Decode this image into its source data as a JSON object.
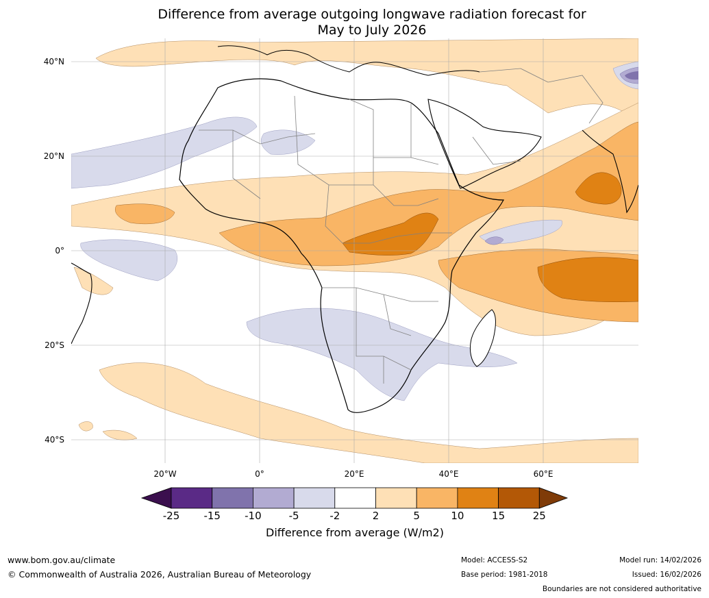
{
  "title": {
    "line1": "Difference from average outgoing longwave radiation forecast for",
    "line2": "May to July 2026"
  },
  "axes": {
    "lat_labels": [
      "40°N",
      "20°N",
      "0°",
      "20°S",
      "40°S"
    ],
    "lon_labels": [
      "20°W",
      "0°",
      "20°E",
      "40°E",
      "60°E"
    ]
  },
  "colorbar": {
    "ticks": [
      "-25",
      "-15",
      "-10",
      "-5",
      "-2",
      "2",
      "5",
      "10",
      "15",
      "25"
    ],
    "colors": [
      "#3b0f4e",
      "#5a2a86",
      "#8073ac",
      "#b2abd2",
      "#d8daeb",
      "#ffffff",
      "#fee0b6",
      "#f9b565",
      "#e08214",
      "#b35806",
      "#7f3b08"
    ],
    "label": "Difference from average (W/m2)"
  },
  "legend_colors": {
    "light_purple": "#d8daeb",
    "mid_purple": "#b2abd2",
    "dark_purple": "#8073ac",
    "light_orange": "#fee0b6",
    "mid_orange": "#f9b565",
    "dark_orange": "#e08214"
  },
  "footer": {
    "url": "www.bom.gov.au/climate",
    "copyright": "© Commonwealth of Australia 2026, Australian Bureau of Meteorology",
    "model": "Model: ACCESS-S2",
    "base_period": "Base period: 1981-2018",
    "model_run": "Model run: 14/02/2026",
    "issued": "Issued: 16/02/2026",
    "disclaimer": "Boundaries are not considered authoritative"
  }
}
